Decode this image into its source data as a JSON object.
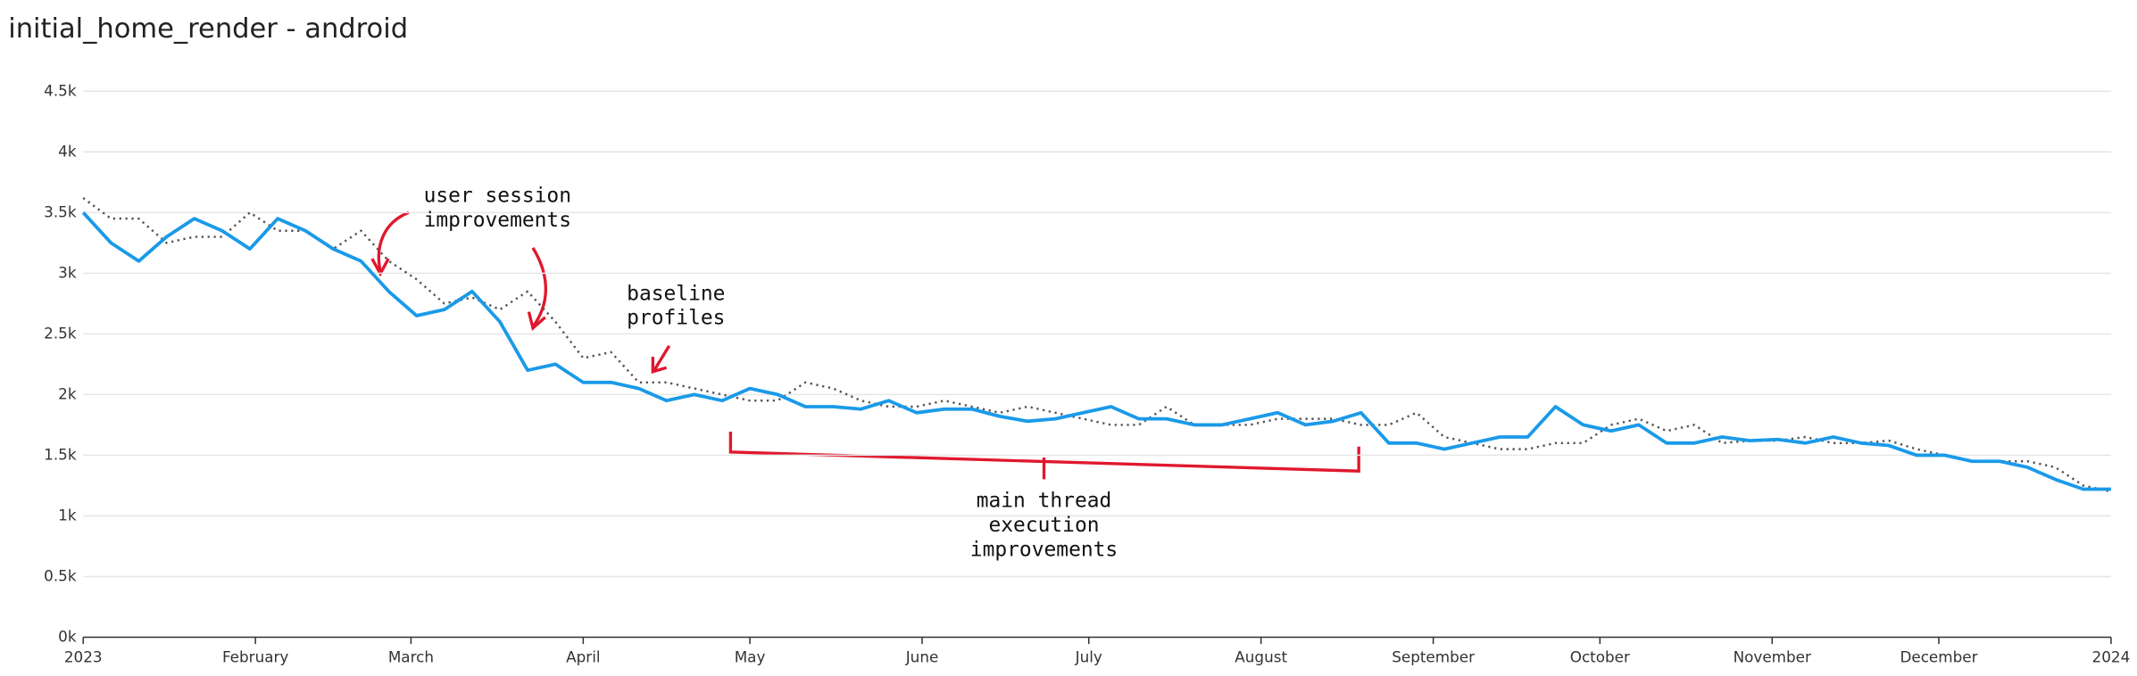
{
  "chart_data": {
    "type": "line",
    "title": "initial_home_render - android",
    "x": [
      0,
      5,
      10,
      15,
      20,
      25,
      30,
      35,
      40,
      45,
      50,
      55,
      60,
      65,
      70,
      75,
      80,
      85,
      90,
      95,
      100,
      105,
      110,
      115,
      120,
      125,
      130,
      135,
      140,
      145,
      150,
      155,
      160,
      165,
      170,
      175,
      180,
      185,
      190,
      195,
      200,
      205,
      210,
      215,
      220,
      225,
      230,
      235,
      240,
      245,
      250,
      255,
      260,
      265,
      270,
      275,
      280,
      285,
      290,
      295,
      300,
      305,
      310,
      315,
      320,
      325,
      330,
      335,
      340,
      345,
      350,
      355,
      360,
      365
    ],
    "series": [
      {
        "color": "#1a9ae8",
        "style": "solid",
        "values": [
          3500,
          3250,
          3100,
          3300,
          3450,
          3350,
          3200,
          3450,
          3350,
          3200,
          3100,
          2850,
          2650,
          2700,
          2850,
          2600,
          2200,
          2250,
          2100,
          2100,
          2050,
          1950,
          2000,
          1950,
          2050,
          2000,
          1900,
          1900,
          1880,
          1950,
          1850,
          1880,
          1880,
          1820,
          1780,
          1800,
          1850,
          1900,
          1800,
          1800,
          1750,
          1750,
          1800,
          1850,
          1750,
          1780,
          1850,
          1600,
          1600,
          1550,
          1600,
          1650,
          1650,
          1900,
          1750,
          1700,
          1750,
          1600,
          1600,
          1650,
          1620,
          1630,
          1600,
          1650,
          1600,
          1580,
          1500,
          1500,
          1450,
          1450,
          1400,
          1300,
          1220,
          1220
        ]
      },
      {
        "color": "#555555",
        "style": "dotted",
        "values": [
          3620,
          3450,
          3450,
          3250,
          3300,
          3300,
          3500,
          3350,
          3350,
          3200,
          3350,
          3100,
          2950,
          2750,
          2800,
          2700,
          2850,
          2600,
          2300,
          2350,
          2100,
          2100,
          2050,
          2000,
          1950,
          1950,
          2100,
          2050,
          1950,
          1900,
          1900,
          1950,
          1900,
          1850,
          1900,
          1850,
          1800,
          1750,
          1750,
          1900,
          1750,
          1750,
          1750,
          1800,
          1800,
          1800,
          1750,
          1750,
          1850,
          1650,
          1600,
          1550,
          1550,
          1600,
          1600,
          1750,
          1800,
          1700,
          1750,
          1600,
          1620,
          1620,
          1650,
          1600,
          1600,
          1620,
          1550,
          1500,
          1450,
          1450,
          1450,
          1400,
          1250,
          1200
        ]
      }
    ],
    "xlim": [
      0,
      365
    ],
    "xticks": [
      {
        "value": 0,
        "label": "2023"
      },
      {
        "value": 31,
        "label": "February"
      },
      {
        "value": 59,
        "label": "March"
      },
      {
        "value": 90,
        "label": "April"
      },
      {
        "value": 120,
        "label": "May"
      },
      {
        "value": 151,
        "label": "June"
      },
      {
        "value": 181,
        "label": "July"
      },
      {
        "value": 212,
        "label": "August"
      },
      {
        "value": 243,
        "label": "September"
      },
      {
        "value": 273,
        "label": "October"
      },
      {
        "value": 304,
        "label": "November"
      },
      {
        "value": 334,
        "label": "December"
      },
      {
        "value": 365,
        "label": "2024"
      }
    ],
    "ylim": [
      0,
      4500
    ],
    "yticks": [
      {
        "value": 0,
        "label": "0k"
      },
      {
        "value": 500,
        "label": "0.5k"
      },
      {
        "value": 1000,
        "label": "1k"
      },
      {
        "value": 1500,
        "label": "1.5k"
      },
      {
        "value": 2000,
        "label": "2k"
      },
      {
        "value": 2500,
        "label": "2.5k"
      },
      {
        "value": 3000,
        "label": "3k"
      },
      {
        "value": 3500,
        "label": "3.5k"
      },
      {
        "value": 4000,
        "label": "4k"
      },
      {
        "value": 4500,
        "label": "4.5k"
      }
    ],
    "grid": true,
    "annotations": [
      {
        "lines": [
          "user session",
          "improvements"
        ]
      },
      {
        "lines": [
          "baseline",
          "profiles"
        ]
      },
      {
        "lines": [
          "main thread",
          "execution",
          "improvements"
        ]
      }
    ]
  }
}
